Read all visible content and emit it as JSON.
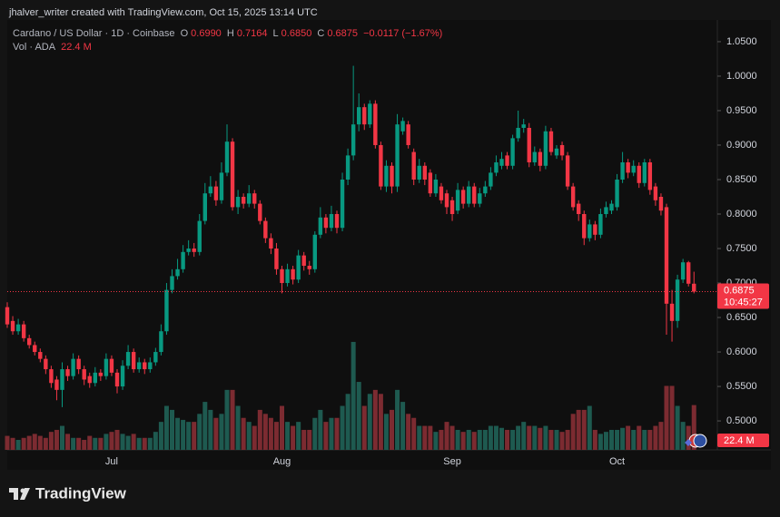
{
  "chart_data": {
    "type": "candlestick",
    "author_line": "jhalver_writer created with TradingView.com, Oct 15, 2025 13:14 UTC",
    "symbol": "Cardano / US Dollar · 1D · Coinbase",
    "ohlc_labels": [
      "O",
      "H",
      "L",
      "C"
    ],
    "ohlc_values": [
      "0.6990",
      "0.7164",
      "0.6850",
      "0.6875"
    ],
    "change": "−0.0117 (−1.67%)",
    "volume_label": "Vol · ADA",
    "volume_value": "22.4 M",
    "last_price_label": "0.6875",
    "countdown": "10:45:27",
    "watermark": "TradingView",
    "up_color": "#089981",
    "down_color": "#f23645",
    "volume_up_color": "#1e5a50",
    "volume_down_color": "#7c2b31",
    "categories": [
      null,
      null,
      null,
      null,
      null,
      null,
      null,
      null,
      null,
      null,
      null,
      null,
      null,
      null,
      null,
      null,
      null,
      null,
      null,
      "Jul",
      null,
      null,
      null,
      null,
      null,
      null,
      null,
      null,
      null,
      null,
      null,
      null,
      null,
      null,
      null,
      null,
      null,
      null,
      null,
      null,
      null,
      null,
      null,
      null,
      null,
      null,
      null,
      null,
      null,
      null,
      "Aug",
      null,
      null,
      null,
      null,
      null,
      null,
      null,
      null,
      null,
      null,
      null,
      null,
      null,
      null,
      null,
      null,
      null,
      null,
      null,
      null,
      null,
      null,
      null,
      null,
      null,
      null,
      null,
      null,
      null,
      null,
      "Sep",
      null,
      null,
      null,
      null,
      null,
      null,
      null,
      null,
      null,
      null,
      null,
      null,
      null,
      null,
      null,
      null,
      null,
      null,
      null,
      null,
      null,
      null,
      null,
      null,
      null,
      null,
      null,
      null,
      null,
      "Oct",
      null,
      null,
      null,
      null,
      null,
      null,
      null,
      null,
      null,
      null,
      null,
      null,
      null,
      null
    ],
    "open": [
      0.665,
      0.645,
      0.63,
      0.64,
      0.62,
      0.61,
      0.6,
      0.59,
      0.575,
      0.56,
      0.545,
      0.575,
      0.565,
      0.59,
      0.575,
      0.565,
      0.555,
      0.57,
      0.565,
      0.59,
      0.57,
      0.55,
      0.58,
      0.6,
      0.575,
      0.585,
      0.575,
      0.585,
      0.6,
      0.63,
      0.69,
      0.71,
      0.72,
      0.745,
      0.75,
      0.745,
      0.79,
      0.83,
      0.84,
      0.82,
      0.86,
      0.905,
      0.81,
      0.825,
      0.815,
      0.83,
      0.815,
      0.79,
      0.765,
      0.75,
      0.72,
      0.7,
      0.72,
      0.705,
      0.74,
      0.725,
      0.72,
      0.77,
      0.795,
      0.78,
      0.8,
      0.78,
      0.85,
      0.885,
      0.93,
      0.955,
      0.93,
      0.96,
      0.9,
      0.84,
      0.87,
      0.84,
      0.92,
      0.93,
      0.89,
      0.85,
      0.87,
      0.86,
      0.83,
      0.84,
      0.83,
      0.82,
      0.805,
      0.835,
      0.815,
      0.84,
      0.815,
      0.83,
      0.84,
      0.86,
      0.87,
      0.885,
      0.87,
      0.91,
      0.925,
      0.925,
      0.875,
      0.89,
      0.87,
      0.92,
      0.885,
      0.9,
      0.885,
      0.84,
      0.815,
      0.8,
      0.765,
      0.785,
      0.77,
      0.8,
      0.805,
      0.81,
      0.85,
      0.875,
      0.86,
      0.87,
      0.845,
      0.875,
      0.84,
      0.825,
      0.81,
      0.67,
      0.645,
      0.705,
      0.73,
      0.699
    ],
    "high": [
      0.672,
      0.652,
      0.648,
      0.645,
      0.625,
      0.615,
      0.605,
      0.595,
      0.58,
      0.565,
      0.585,
      0.58,
      0.598,
      0.595,
      0.58,
      0.57,
      0.578,
      0.575,
      0.598,
      0.595,
      0.575,
      0.588,
      0.61,
      0.605,
      0.592,
      0.59,
      0.592,
      0.606,
      0.64,
      0.7,
      0.72,
      0.735,
      0.755,
      0.762,
      0.758,
      0.8,
      0.845,
      0.855,
      0.848,
      0.875,
      0.93,
      0.91,
      0.835,
      0.83,
      0.842,
      0.835,
      0.82,
      0.795,
      0.772,
      0.758,
      0.725,
      0.728,
      0.725,
      0.748,
      0.745,
      0.732,
      0.775,
      0.81,
      0.8,
      0.812,
      0.805,
      0.86,
      0.895,
      1.015,
      0.975,
      0.96,
      0.965,
      0.965,
      0.905,
      0.878,
      0.875,
      0.945,
      0.94,
      0.935,
      0.895,
      0.88,
      0.875,
      0.865,
      0.858,
      0.845,
      0.835,
      0.825,
      0.845,
      0.84,
      0.848,
      0.845,
      0.838,
      0.848,
      0.868,
      0.885,
      0.89,
      0.89,
      0.915,
      0.95,
      0.938,
      0.932,
      0.898,
      0.895,
      0.928,
      0.925,
      0.9,
      0.905,
      0.89,
      0.845,
      0.82,
      0.805,
      0.792,
      0.79,
      0.808,
      0.818,
      0.82,
      0.858,
      0.89,
      0.88,
      0.878,
      0.875,
      0.88,
      0.88,
      0.845,
      0.83,
      0.815,
      0.69,
      0.712,
      0.735,
      0.732,
      0.7164
    ],
    "low": [
      0.635,
      0.625,
      0.625,
      0.615,
      0.605,
      0.595,
      0.585,
      0.568,
      0.548,
      0.53,
      0.52,
      0.558,
      0.56,
      0.568,
      0.552,
      0.548,
      0.55,
      0.558,
      0.56,
      0.565,
      0.54,
      0.545,
      0.575,
      0.57,
      0.57,
      0.568,
      0.57,
      0.58,
      0.595,
      0.625,
      0.685,
      0.705,
      0.715,
      0.74,
      0.738,
      0.74,
      0.785,
      0.825,
      0.812,
      0.815,
      0.855,
      0.805,
      0.8,
      0.808,
      0.81,
      0.808,
      0.785,
      0.758,
      0.742,
      0.712,
      0.685,
      0.695,
      0.698,
      0.7,
      0.718,
      0.712,
      0.715,
      0.765,
      0.772,
      0.775,
      0.772,
      0.775,
      0.842,
      0.878,
      0.92,
      0.922,
      0.925,
      0.895,
      0.835,
      0.832,
      0.83,
      0.832,
      0.915,
      0.895,
      0.842,
      0.845,
      0.842,
      0.825,
      0.825,
      0.815,
      0.8,
      0.79,
      0.8,
      0.808,
      0.81,
      0.81,
      0.81,
      0.825,
      0.835,
      0.855,
      0.865,
      0.865,
      0.865,
      0.905,
      0.918,
      0.868,
      0.87,
      0.862,
      0.865,
      0.885,
      0.88,
      0.878,
      0.835,
      0.805,
      0.79,
      0.755,
      0.76,
      0.762,
      0.765,
      0.795,
      0.8,
      0.805,
      0.845,
      0.852,
      0.855,
      0.838,
      0.84,
      0.828,
      0.812,
      0.798,
      0.625,
      0.615,
      0.635,
      0.7,
      0.695,
      0.685
    ],
    "close": [
      0.64,
      0.63,
      0.64,
      0.62,
      0.61,
      0.6,
      0.59,
      0.575,
      0.555,
      0.545,
      0.575,
      0.565,
      0.59,
      0.575,
      0.56,
      0.555,
      0.57,
      0.565,
      0.59,
      0.57,
      0.55,
      0.58,
      0.6,
      0.575,
      0.585,
      0.575,
      0.585,
      0.6,
      0.63,
      0.69,
      0.71,
      0.72,
      0.745,
      0.75,
      0.745,
      0.79,
      0.83,
      0.84,
      0.82,
      0.86,
      0.905,
      0.81,
      0.825,
      0.815,
      0.83,
      0.815,
      0.79,
      0.765,
      0.75,
      0.72,
      0.7,
      0.72,
      0.705,
      0.74,
      0.725,
      0.72,
      0.77,
      0.795,
      0.78,
      0.8,
      0.78,
      0.85,
      0.885,
      0.93,
      0.955,
      0.93,
      0.96,
      0.9,
      0.84,
      0.87,
      0.84,
      0.93,
      0.935,
      0.9,
      0.85,
      0.87,
      0.85,
      0.83,
      0.85,
      0.82,
      0.81,
      0.8,
      0.835,
      0.815,
      0.84,
      0.815,
      0.83,
      0.84,
      0.86,
      0.875,
      0.88,
      0.87,
      0.91,
      0.925,
      0.93,
      0.875,
      0.89,
      0.87,
      0.92,
      0.89,
      0.895,
      0.885,
      0.84,
      0.81,
      0.8,
      0.765,
      0.785,
      0.77,
      0.8,
      0.81,
      0.815,
      0.85,
      0.875,
      0.86,
      0.87,
      0.845,
      0.875,
      0.835,
      0.82,
      0.805,
      0.67,
      0.645,
      0.705,
      0.73,
      0.699,
      0.6875
    ],
    "volume": [
      7,
      6,
      5,
      6,
      7,
      8,
      7,
      6,
      9,
      10,
      12,
      8,
      6,
      6,
      5,
      7,
      6,
      6,
      8,
      9,
      10,
      8,
      7,
      8,
      6,
      6,
      6,
      9,
      14,
      22,
      20,
      16,
      15,
      14,
      14,
      18,
      24,
      20,
      16,
      18,
      30,
      30,
      22,
      16,
      14,
      12,
      20,
      18,
      16,
      14,
      22,
      14,
      12,
      14,
      10,
      10,
      16,
      20,
      14,
      16,
      16,
      22,
      28,
      54,
      34,
      22,
      28,
      30,
      28,
      18,
      20,
      30,
      24,
      18,
      16,
      12,
      12,
      12,
      9,
      10,
      14,
      12,
      10,
      9,
      10,
      9,
      10,
      10,
      12,
      12,
      11,
      10,
      10,
      12,
      14,
      12,
      12,
      11,
      12,
      10,
      10,
      9,
      10,
      18,
      20,
      20,
      22,
      10,
      8,
      9,
      10,
      10,
      11,
      12,
      10,
      12,
      10,
      10,
      12,
      14,
      32,
      32,
      22,
      14,
      12,
      22.4
    ],
    "ylim": [
      0.458,
      1.0815
    ],
    "yticks": [
      {
        "value": 0.5,
        "label": "0.5000"
      },
      {
        "value": 0.55,
        "label": "0.5500"
      },
      {
        "value": 0.6,
        "label": "0.6000"
      },
      {
        "value": 0.65,
        "label": "0.6500"
      },
      {
        "value": 0.7,
        "label": "0.7000"
      },
      {
        "value": 0.75,
        "label": "0.7500"
      },
      {
        "value": 0.8,
        "label": "0.8000"
      },
      {
        "value": 0.85,
        "label": "0.8500"
      },
      {
        "value": 0.9,
        "label": "0.9000"
      },
      {
        "value": 0.95,
        "label": "0.9500"
      },
      {
        "value": 1.0,
        "label": "1.0000"
      },
      {
        "value": 1.05,
        "label": "1.0500"
      }
    ],
    "volume_lim": [
      0,
      215
    ]
  }
}
